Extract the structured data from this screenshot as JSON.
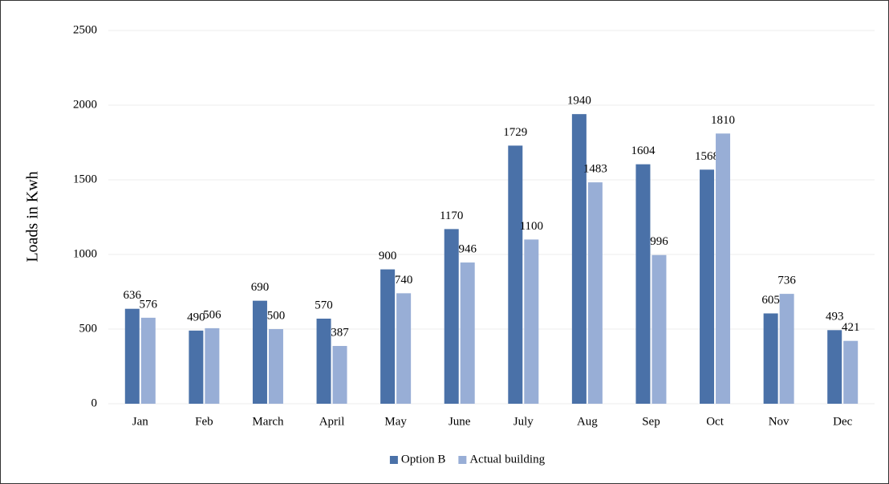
{
  "chart_data": {
    "type": "bar",
    "y_axis_label": "Loads in Kwh",
    "categories": [
      "Jan",
      "Feb",
      "March",
      "April",
      "May",
      "June",
      "July",
      "Aug",
      "Sep",
      "Oct",
      "Nov",
      "Dec"
    ],
    "series": [
      {
        "name": "Option B",
        "color": "#4a71a8",
        "values": [
          636,
          490,
          690,
          570,
          900,
          1170,
          1729,
          1940,
          1604,
          1568,
          605,
          493
        ]
      },
      {
        "name": "Actual building",
        "color": "#98aed6",
        "values": [
          576,
          506,
          500,
          387,
          740,
          946,
          1100,
          1483,
          996,
          1810,
          736,
          421
        ]
      }
    ],
    "ylim": [
      0,
      2500
    ],
    "yticks": [
      0,
      500,
      1000,
      1500,
      2000,
      2500
    ],
    "grid": true,
    "legend": "bottom"
  }
}
